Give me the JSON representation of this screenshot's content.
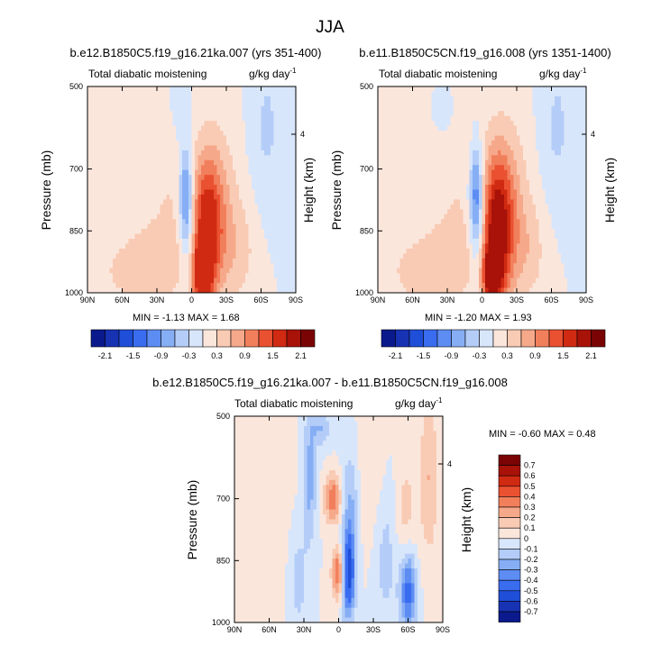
{
  "figure": {
    "title": "JJA"
  },
  "colors": {
    "background_field": "#d3e6fb",
    "frame": "#000000"
  },
  "icons": {
    "colorbar_end_left": "triangle-left",
    "colorbar_end_right": "triangle-right"
  },
  "chart_data": [
    {
      "type": "heatmap",
      "panel": "top-left",
      "title": "b.e12.B1850C5.f19_g16.21ka.007 (yrs 351-400)",
      "left_label": "Total diabatic moistening",
      "right_label": "g/kg day",
      "right_label_sup": "-1",
      "xlabel": "",
      "ylabel": "Pressure (mb)",
      "y2label": "Height (km)",
      "x_ticks": [
        "90N",
        "60N",
        "30N",
        "0",
        "30S",
        "60S",
        "90S"
      ],
      "xlim": [
        90,
        -90
      ],
      "y_ticks": [
        "500",
        "700",
        "850",
        "1000"
      ],
      "y_tick_values": [
        500,
        700,
        850,
        1000
      ],
      "ylim": [
        500,
        1000
      ],
      "y2_ticks": [
        "4"
      ],
      "y2_tick_values": [
        4
      ],
      "stats_text": "MIN =  -1.13   MAX =  1.68",
      "min": -1.13,
      "max": 1.68,
      "field_features": [
        {
          "lat": 5,
          "p": 760,
          "value": -1.1,
          "dlat": 4,
          "dp": 80
        },
        {
          "lat": 3,
          "p": 880,
          "value": -0.5,
          "dlat": 5,
          "dp": 90
        },
        {
          "lat": -13,
          "p": 860,
          "value": 1.5,
          "dlat": 9,
          "dp": 120
        },
        {
          "lat": -8,
          "p": 960,
          "value": 1.3,
          "dlat": 6,
          "dp": 50
        },
        {
          "lat": -20,
          "p": 780,
          "value": 0.6,
          "dlat": 14,
          "dp": 140
        },
        {
          "lat": 28,
          "p": 920,
          "value": 0.5,
          "dlat": 20,
          "dp": 80
        },
        {
          "lat": 60,
          "p": 950,
          "value": 0.3,
          "dlat": 16,
          "dp": 55
        },
        {
          "lat": 20,
          "p": 660,
          "value": 0.3,
          "dlat": 10,
          "dp": 140
        },
        {
          "lat": -65,
          "p": 600,
          "value": -0.35,
          "dlat": 10,
          "dp": 140
        },
        {
          "lat": 12,
          "p": 560,
          "value": -0.3,
          "dlat": 8,
          "dp": 70
        },
        {
          "lat": -40,
          "p": 900,
          "value": 0.4,
          "dlat": 12,
          "dp": 90
        }
      ]
    },
    {
      "type": "heatmap",
      "panel": "top-right",
      "title": "b.e11.B1850C5CN.f19_g16.008 (yrs 1351-1400)",
      "left_label": "Total diabatic moistening",
      "right_label": "g/kg day",
      "right_label_sup": "-1",
      "xlabel": "",
      "ylabel": "Pressure (mb)",
      "y2label": "Height (km)",
      "x_ticks": [
        "90N",
        "60N",
        "30N",
        "0",
        "30S",
        "60S",
        "90S"
      ],
      "xlim": [
        90,
        -90
      ],
      "y_ticks": [
        "500",
        "700",
        "850",
        "1000"
      ],
      "y_tick_values": [
        500,
        700,
        850,
        1000
      ],
      "ylim": [
        500,
        1000
      ],
      "y2_ticks": [
        "4"
      ],
      "y2_tick_values": [
        4
      ],
      "stats_text": "MIN =  -1.20   MAX =  1.93",
      "min": -1.2,
      "max": 1.93,
      "field_features": [
        {
          "lat": 5,
          "p": 760,
          "value": -1.2,
          "dlat": 4,
          "dp": 85
        },
        {
          "lat": 3,
          "p": 880,
          "value": -0.5,
          "dlat": 5,
          "dp": 90
        },
        {
          "lat": -13,
          "p": 860,
          "value": 1.7,
          "dlat": 9,
          "dp": 125
        },
        {
          "lat": -8,
          "p": 960,
          "value": 1.4,
          "dlat": 6,
          "dp": 50
        },
        {
          "lat": -20,
          "p": 780,
          "value": 0.7,
          "dlat": 14,
          "dp": 140
        },
        {
          "lat": 28,
          "p": 920,
          "value": 0.5,
          "dlat": 20,
          "dp": 80
        },
        {
          "lat": 60,
          "p": 950,
          "value": 0.35,
          "dlat": 16,
          "dp": 55
        },
        {
          "lat": 22,
          "p": 650,
          "value": 0.3,
          "dlat": 10,
          "dp": 140
        },
        {
          "lat": -65,
          "p": 600,
          "value": -0.35,
          "dlat": 10,
          "dp": 140
        },
        {
          "lat": 30,
          "p": 560,
          "value": -0.3,
          "dlat": 6,
          "dp": 50
        },
        {
          "lat": -40,
          "p": 900,
          "value": 0.4,
          "dlat": 12,
          "dp": 90
        }
      ]
    },
    {
      "type": "heatmap",
      "panel": "bottom-difference",
      "title": "b.e12.B1850C5.f19_g16.21ka.007 - b.e11.B1850C5CN.f19_g16.008",
      "left_label": "Total diabatic moistening",
      "right_label": "g/kg day",
      "right_label_sup": "-1",
      "xlabel": "",
      "ylabel": "Pressure (mb)",
      "y2label": "Height (km)",
      "x_ticks": [
        "90N",
        "60N",
        "30N",
        "0",
        "30S",
        "60S",
        "90S"
      ],
      "xlim": [
        90,
        -90
      ],
      "y_ticks": [
        "500",
        "700",
        "850",
        "1000"
      ],
      "y_tick_values": [
        500,
        700,
        850,
        1000
      ],
      "ylim": [
        500,
        1000
      ],
      "y2_ticks": [
        "4"
      ],
      "y2_tick_values": [
        4
      ],
      "stats_text": "MIN =  -0.60   MAX =  0.48",
      "min": -0.6,
      "max": 0.48,
      "field_features": [
        {
          "lat": 5,
          "p": 700,
          "value": 0.4,
          "dlat": 5,
          "dp": 40
        },
        {
          "lat": 0,
          "p": 880,
          "value": 0.45,
          "dlat": 4,
          "dp": 45
        },
        {
          "lat": -8,
          "p": 890,
          "value": -0.5,
          "dlat": 4,
          "dp": 70
        },
        {
          "lat": -10,
          "p": 760,
          "value": -0.25,
          "dlat": 5,
          "dp": 120
        },
        {
          "lat": -60,
          "p": 920,
          "value": -0.5,
          "dlat": 5,
          "dp": 70
        },
        {
          "lat": -58,
          "p": 760,
          "value": 0.15,
          "dlat": 6,
          "dp": 120
        },
        {
          "lat": -78,
          "p": 650,
          "value": 0.2,
          "dlat": 6,
          "dp": 140
        },
        {
          "lat": 25,
          "p": 650,
          "value": -0.25,
          "dlat": 4,
          "dp": 110
        },
        {
          "lat": 15,
          "p": 530,
          "value": -0.2,
          "dlat": 6,
          "dp": 30
        },
        {
          "lat": 35,
          "p": 900,
          "value": -0.15,
          "dlat": 6,
          "dp": 100
        },
        {
          "lat": -28,
          "p": 650,
          "value": 0.1,
          "dlat": 8,
          "dp": 150
        },
        {
          "lat": 70,
          "p": 800,
          "value": 0.08,
          "dlat": 20,
          "dp": 200
        },
        {
          "lat": -40,
          "p": 840,
          "value": -0.15,
          "dlat": 8,
          "dp": 120
        }
      ]
    }
  ],
  "colorbars": [
    {
      "panel": "top-left",
      "orientation": "horizontal",
      "labels": [
        "-2.1",
        "-1.5",
        "-0.9",
        "-0.3",
        "0.3",
        "0.9",
        "1.5",
        "2.1"
      ],
      "levels": [
        -2.1,
        -1.8,
        -1.5,
        -1.2,
        -0.9,
        -0.6,
        -0.3,
        0,
        0.3,
        0.6,
        0.9,
        1.2,
        1.5,
        1.8,
        2.1
      ]
    },
    {
      "panel": "top-right",
      "orientation": "horizontal",
      "labels": [
        "-2.1",
        "-1.5",
        "-0.9",
        "-0.3",
        "0.3",
        "0.9",
        "1.5",
        "2.1"
      ],
      "levels": [
        -2.1,
        -1.8,
        -1.5,
        -1.2,
        -0.9,
        -0.6,
        -0.3,
        0,
        0.3,
        0.6,
        0.9,
        1.2,
        1.5,
        1.8,
        2.1
      ]
    },
    {
      "panel": "bottom-difference",
      "orientation": "vertical",
      "labels": [
        "0.7",
        "0.6",
        "0.5",
        "0.4",
        "0.3",
        "0.2",
        "0.1",
        "0",
        "-0.1",
        "-0.2",
        "-0.3",
        "-0.4",
        "-0.5",
        "-0.6",
        "-0.7"
      ],
      "levels": [
        0.7,
        0.6,
        0.5,
        0.4,
        0.3,
        0.2,
        0.1,
        0,
        -0.1,
        -0.2,
        -0.3,
        -0.4,
        -0.5,
        -0.6,
        -0.7
      ]
    }
  ],
  "palette": [
    "#0a1a8c",
    "#1832b4",
    "#1f4fd8",
    "#3a6cf0",
    "#5d8cf3",
    "#86aef5",
    "#b4cdf8",
    "#d8e6fb",
    "#fbe6dc",
    "#f9cbb4",
    "#f6a98a",
    "#f27f5c",
    "#ea5130",
    "#d02a12",
    "#a81208",
    "#7a0404"
  ]
}
